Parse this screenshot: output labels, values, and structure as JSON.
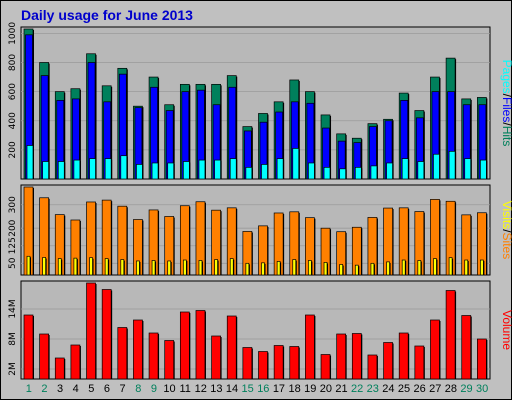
{
  "title": "Daily usage for June 2013",
  "colors": {
    "background": "#c0c0c0",
    "plot": "#b8b8b8",
    "hits": "#00805c",
    "files": "#0000ff",
    "pages": "#00ffff",
    "visits": "#ff8000",
    "sites": "#ffff00",
    "volume": "#ff0000",
    "weekend_label": "#00805c",
    "weekday_label": "#000000",
    "title": "#0000cc"
  },
  "chart_data": [
    {
      "type": "bar",
      "panel": "hits-files-pages",
      "categories": [
        "1",
        "2",
        "3",
        "4",
        "5",
        "6",
        "7",
        "8",
        "9",
        "10",
        "11",
        "12",
        "13",
        "14",
        "15",
        "16",
        "17",
        "18",
        "19",
        "20",
        "21",
        "22",
        "23",
        "24",
        "25",
        "26",
        "27",
        "28",
        "29",
        "30"
      ],
      "weekend_days": [
        "1",
        "2",
        "8",
        "9",
        "15",
        "16",
        "22",
        "23",
        "29",
        "30"
      ],
      "legend": [
        {
          "text": "Pages",
          "color": "#00ffff"
        },
        {
          "text": "/",
          "color": "#000000"
        },
        {
          "text": "Files",
          "color": "#0000ff"
        },
        {
          "text": "/",
          "color": "#000000"
        },
        {
          "text": "Hits",
          "color": "#00805c"
        }
      ],
      "yticks": [
        "200",
        "400",
        "600",
        "800",
        "1000"
      ],
      "ylim": [
        0,
        1030
      ],
      "series": [
        {
          "name": "Hits",
          "values": [
            1030,
            800,
            600,
            620,
            860,
            640,
            760,
            500,
            700,
            510,
            650,
            650,
            650,
            710,
            360,
            450,
            530,
            680,
            600,
            440,
            310,
            280,
            380,
            410,
            590,
            470,
            700,
            830,
            550,
            560
          ]
        },
        {
          "name": "Files",
          "values": [
            990,
            710,
            540,
            550,
            800,
            530,
            720,
            490,
            630,
            470,
            600,
            610,
            510,
            630,
            330,
            390,
            460,
            530,
            520,
            350,
            260,
            250,
            360,
            400,
            540,
            420,
            600,
            600,
            510,
            510
          ]
        },
        {
          "name": "Pages",
          "values": [
            230,
            120,
            120,
            130,
            140,
            140,
            160,
            100,
            110,
            110,
            120,
            130,
            130,
            140,
            80,
            100,
            140,
            210,
            110,
            80,
            70,
            80,
            90,
            110,
            140,
            120,
            170,
            190,
            140,
            130
          ]
        }
      ]
    },
    {
      "type": "bar",
      "panel": "visits-sites",
      "categories": [
        "1",
        "2",
        "3",
        "4",
        "5",
        "6",
        "7",
        "8",
        "9",
        "10",
        "11",
        "12",
        "13",
        "14",
        "15",
        "16",
        "17",
        "18",
        "19",
        "20",
        "21",
        "22",
        "23",
        "24",
        "25",
        "26",
        "27",
        "28",
        "29",
        "30"
      ],
      "legend": [
        {
          "text": "Visits",
          "color": "#ffff00"
        },
        {
          "text": "/",
          "color": "#000000"
        },
        {
          "text": "Sites",
          "color": "#ff8000"
        }
      ],
      "yticks": [
        "50",
        "125",
        "200",
        "300"
      ],
      "ylim": [
        0,
        376
      ],
      "series": [
        {
          "name": "Visits",
          "values": [
            376,
            330,
            258,
            235,
            312,
            320,
            294,
            237,
            278,
            250,
            296,
            313,
            277,
            287,
            186,
            210,
            265,
            270,
            245,
            200,
            185,
            204,
            246,
            286,
            287,
            271,
            323,
            315,
            257,
            266
          ]
        },
        {
          "name": "Sites",
          "values": [
            80,
            75,
            70,
            72,
            74,
            70,
            66,
            60,
            62,
            60,
            64,
            62,
            66,
            70,
            50,
            52,
            58,
            66,
            62,
            54,
            45,
            42,
            50,
            56,
            64,
            62,
            70,
            74,
            64,
            64
          ]
        }
      ]
    },
    {
      "type": "bar",
      "panel": "volume",
      "categories": [
        "1",
        "2",
        "3",
        "4",
        "5",
        "6",
        "7",
        "8",
        "9",
        "10",
        "11",
        "12",
        "13",
        "14",
        "15",
        "16",
        "17",
        "18",
        "19",
        "20",
        "21",
        "22",
        "23",
        "24",
        "25",
        "26",
        "27",
        "28",
        "29",
        "30"
      ],
      "legend": [
        {
          "text": "Volume",
          "color": "#ff0000"
        }
      ],
      "yticks": [
        "2M",
        "8M",
        "14M"
      ],
      "ylim": [
        0,
        19200000
      ],
      "unit_note": "bytes",
      "series": [
        {
          "name": "Volume",
          "values": [
            12800000,
            9000000,
            4200000,
            6800000,
            19200000,
            17900000,
            10300000,
            11800000,
            9200000,
            7700000,
            13400000,
            13700000,
            8600000,
            12600000,
            6300000,
            5500000,
            6700000,
            6500000,
            12800000,
            4900000,
            9000000,
            9100000,
            4800000,
            7300000,
            9200000,
            6600000,
            11800000,
            17700000,
            12700000,
            8000000
          ]
        }
      ]
    }
  ]
}
